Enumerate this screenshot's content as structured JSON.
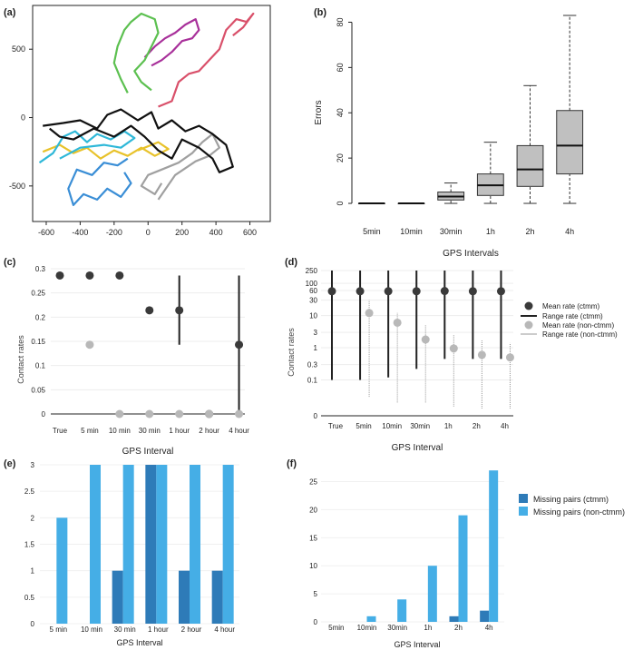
{
  "colors": {
    "black": "#111111",
    "gray": "#a0a0a0",
    "red": "#d9506a",
    "magenta": "#a8309a",
    "green": "#5cc050",
    "cyan": "#2fb8d8",
    "yellow": "#e8c22a",
    "blue": "#3a8ed6",
    "box_fill": "#c0c0c0",
    "dot_dark": "#3a3a3a",
    "dot_light": "#b8b8b8",
    "bar_dark": "#2e7bb8",
    "bar_light": "#45aee6"
  },
  "chart_data": [
    {
      "panel": "(a)",
      "type": "scatter",
      "title": "",
      "xlabel": "",
      "ylabel": "",
      "xlim": [
        -680,
        720
      ],
      "ylim": [
        -760,
        820
      ],
      "xticks": [
        "-600",
        "-400",
        "-200",
        "0",
        "200",
        "400",
        "600"
      ],
      "xtick_values": [
        -600,
        -400,
        -200,
        0,
        200,
        400,
        600
      ],
      "yticks": [
        "500",
        "0",
        "-500"
      ],
      "ytick_values": [
        500,
        0,
        -500
      ],
      "series": [
        {
          "name": "blue",
          "color_key": "blue",
          "points": [
            [
              -120,
              -300
            ],
            [
              -180,
              -350
            ],
            [
              -260,
              -330
            ],
            [
              -330,
              -420
            ],
            [
              -420,
              -380
            ],
            [
              -470,
              -520
            ],
            [
              -440,
              -640
            ],
            [
              -380,
              -560
            ],
            [
              -300,
              -600
            ],
            [
              -240,
              -520
            ],
            [
              -160,
              -580
            ],
            [
              -100,
              -480
            ],
            [
              -140,
              -400
            ]
          ]
        },
        {
          "name": "yellow",
          "color_key": "yellow",
          "points": [
            [
              -620,
              -250
            ],
            [
              -520,
              -200
            ],
            [
              -440,
              -260
            ],
            [
              -360,
              -220
            ],
            [
              -280,
              -300
            ],
            [
              -200,
              -240
            ],
            [
              -120,
              -280
            ],
            [
              -40,
              -220
            ],
            [
              40,
              -280
            ],
            [
              120,
              -230
            ],
            [
              60,
              -180
            ],
            [
              -60,
              -240
            ]
          ]
        },
        {
          "name": "cyan",
          "color_key": "cyan",
          "points": [
            [
              -640,
              -330
            ],
            [
              -560,
              -260
            ],
            [
              -500,
              -140
            ],
            [
              -430,
              -100
            ],
            [
              -360,
              -180
            ],
            [
              -300,
              -120
            ],
            [
              -220,
              -160
            ],
            [
              -140,
              -100
            ],
            [
              -80,
              -150
            ],
            [
              -160,
              -220
            ],
            [
              -260,
              -200
            ],
            [
              -400,
              -220
            ],
            [
              -520,
              -300
            ]
          ]
        },
        {
          "name": "gray",
          "color_key": "gray",
          "points": [
            [
              80,
              -480
            ],
            [
              40,
              -560
            ],
            [
              -40,
              -500
            ],
            [
              0,
              -420
            ],
            [
              80,
              -380
            ],
            [
              180,
              -330
            ],
            [
              260,
              -260
            ],
            [
              320,
              -180
            ],
            [
              380,
              -120
            ],
            [
              420,
              -220
            ],
            [
              360,
              -280
            ],
            [
              280,
              -320
            ],
            [
              160,
              -420
            ],
            [
              60,
              -600
            ]
          ]
        },
        {
          "name": "black",
          "color_key": "black",
          "points": [
            [
              -620,
              -60
            ],
            [
              -500,
              -40
            ],
            [
              -400,
              -20
            ],
            [
              -300,
              -80
            ],
            [
              -240,
              20
            ],
            [
              -160,
              60
            ],
            [
              -60,
              -20
            ],
            [
              20,
              40
            ],
            [
              60,
              -80
            ],
            [
              140,
              -20
            ],
            [
              220,
              -100
            ],
            [
              300,
              -60
            ],
            [
              380,
              -120
            ],
            [
              460,
              -200
            ],
            [
              500,
              -360
            ],
            [
              420,
              -400
            ],
            [
              380,
              -300
            ],
            [
              300,
              -220
            ],
            [
              200,
              -160
            ],
            [
              140,
              -300
            ],
            [
              60,
              -240
            ],
            [
              -20,
              -140
            ],
            [
              -100,
              -60
            ],
            [
              -200,
              -140
            ],
            [
              -320,
              -80
            ],
            [
              -440,
              -160
            ],
            [
              -520,
              -140
            ],
            [
              -580,
              -80
            ]
          ]
        },
        {
          "name": "red",
          "color_key": "red",
          "points": [
            [
              60,
              80
            ],
            [
              140,
              120
            ],
            [
              180,
              260
            ],
            [
              240,
              320
            ],
            [
              300,
              340
            ],
            [
              360,
              420
            ],
            [
              420,
              500
            ],
            [
              460,
              640
            ],
            [
              520,
              720
            ],
            [
              580,
              700
            ],
            [
              620,
              760
            ],
            [
              560,
              660
            ],
            [
              500,
              600
            ]
          ]
        },
        {
          "name": "magenta",
          "color_key": "magenta",
          "points": [
            [
              -20,
              440
            ],
            [
              40,
              520
            ],
            [
              100,
              580
            ],
            [
              160,
              620
            ],
            [
              220,
              680
            ],
            [
              280,
              720
            ],
            [
              300,
              640
            ],
            [
              260,
              580
            ],
            [
              200,
              560
            ],
            [
              140,
              480
            ],
            [
              80,
              420
            ],
            [
              20,
              380
            ]
          ]
        },
        {
          "name": "green",
          "color_key": "green",
          "points": [
            [
              -120,
              180
            ],
            [
              -160,
              280
            ],
            [
              -200,
              400
            ],
            [
              -180,
              520
            ],
            [
              -140,
              640
            ],
            [
              -100,
              700
            ],
            [
              -40,
              760
            ],
            [
              40,
              720
            ],
            [
              60,
              620
            ],
            [
              20,
              520
            ],
            [
              -20,
              420
            ],
            [
              -80,
              340
            ],
            [
              -40,
              260
            ],
            [
              20,
              200
            ]
          ]
        }
      ]
    },
    {
      "panel": "(b)",
      "type": "box",
      "xlabel": "GPS Intervals",
      "ylabel": "Errors",
      "ylim": [
        -4,
        85
      ],
      "yticks": [
        "0",
        "20",
        "40",
        "60",
        "80"
      ],
      "ytick_values": [
        0,
        20,
        40,
        60,
        80
      ],
      "categories": [
        "5min",
        "10min",
        "30min",
        "1h",
        "2h",
        "4h"
      ],
      "boxes": [
        {
          "min": 0,
          "q1": 0,
          "median": 0,
          "q3": 0,
          "max": 0
        },
        {
          "min": 0,
          "q1": 0,
          "median": 0,
          "q3": 0,
          "max": 0
        },
        {
          "min": 0,
          "q1": 1.5,
          "median": 3,
          "q3": 5,
          "max": 9
        },
        {
          "min": 0,
          "q1": 3.5,
          "median": 8,
          "q3": 13,
          "max": 27
        },
        {
          "min": 0,
          "q1": 7.5,
          "median": 15,
          "q3": 25.5,
          "max": 52
        },
        {
          "min": 0,
          "q1": 13,
          "median": 25.5,
          "q3": 41,
          "max": 83
        }
      ]
    },
    {
      "panel": "(c)",
      "type": "dot-range",
      "xlabel": "GPS Interval",
      "ylabel": "Contact rates",
      "ylim": [
        0,
        0.3
      ],
      "yticks": [
        "0",
        "0.05",
        "0.1",
        "0.15",
        "0.2",
        "0.25",
        "0.3"
      ],
      "ytick_values": [
        0,
        0.05,
        0.1,
        0.15,
        0.2,
        0.25,
        0.3
      ],
      "categories": [
        "True",
        "5 min",
        "10 min",
        "30 min",
        "1 hour",
        "2 hour",
        "4 hour"
      ],
      "series": [
        {
          "name": "ctmm",
          "color_key": "dot_dark",
          "values": [
            0.286,
            0.286,
            0.286,
            0.214,
            0.214,
            0,
            0.143
          ],
          "ranges": [
            null,
            null,
            null,
            null,
            [
              0.143,
              0.286
            ],
            null,
            [
              0,
              0.286
            ]
          ]
        },
        {
          "name": "non-ctmm",
          "color_key": "dot_light",
          "values": [
            null,
            0.143,
            0,
            0,
            0,
            0,
            0
          ],
          "ranges": []
        }
      ]
    },
    {
      "panel": "(d)",
      "type": "dot-range",
      "yscale": "log",
      "xlabel": "GPS Interval",
      "ylabel": "Contact rates",
      "yticks": [
        "250",
        "100",
        "60",
        "30",
        "10",
        "3",
        "1",
        "0.3",
        "0.1",
        "0"
      ],
      "ytick_values": [
        250,
        100,
        60,
        30,
        10,
        3,
        1,
        0.3,
        0.1,
        0
      ],
      "categories": [
        "True",
        "5min",
        "10min",
        "30min",
        "1h",
        "2h",
        "4h"
      ],
      "series": [
        {
          "name": "Mean rate (ctmm)",
          "color_key": "dot_dark",
          "values": [
            57,
            57,
            57,
            57,
            58,
            57,
            57
          ],
          "ranges": [
            [
              0.1,
              250
            ],
            [
              0.1,
              250
            ],
            [
              0.12,
              250
            ],
            [
              0.22,
              250
            ],
            [
              0.45,
              250
            ],
            [
              0.45,
              250
            ],
            [
              0.45,
              250
            ]
          ]
        },
        {
          "name": "Mean rate (non-ctmm)",
          "color_key": "dot_light",
          "values": [
            null,
            12,
            6,
            1.8,
            0.95,
            0.6,
            0.5
          ],
          "ranges": [
            null,
            [
              0.03,
              30
            ],
            [
              0.02,
              12
            ],
            [
              0.02,
              5
            ],
            [
              0.015,
              2.5
            ],
            [
              0.013,
              1.7
            ],
            [
              0.013,
              1.4
            ]
          ]
        }
      ],
      "legend": [
        "Mean rate (ctmm)",
        "Range rate (ctmm)",
        "Mean rate (non-ctmm)",
        "Range rate (non-ctmm)"
      ]
    },
    {
      "panel": "(e)",
      "type": "bar",
      "xlabel": "GPS Interval",
      "ylabel": "",
      "ylim": [
        0,
        3
      ],
      "yticks": [
        "0",
        "0.5",
        "1",
        "1.5",
        "2",
        "2.5",
        "3"
      ],
      "ytick_values": [
        0,
        0.5,
        1,
        1.5,
        2,
        2.5,
        3
      ],
      "categories": [
        "5 min",
        "10 min",
        "30 min",
        "1 hour",
        "2 hour",
        "4 hour"
      ],
      "series": [
        {
          "name": "Missing pairs (ctmm)",
          "color_key": "bar_dark",
          "values": [
            0,
            0,
            1,
            3,
            1,
            1
          ]
        },
        {
          "name": "Missing pairs (non-ctmm)",
          "color_key": "bar_light",
          "values": [
            2,
            3,
            3,
            3,
            3,
            3
          ]
        }
      ]
    },
    {
      "panel": "(f)",
      "type": "bar",
      "xlabel": "GPS Interval",
      "ylabel": "",
      "ylim": [
        0,
        28
      ],
      "yticks": [
        "0",
        "5",
        "10",
        "15",
        "20",
        "25"
      ],
      "ytick_values": [
        0,
        5,
        10,
        15,
        20,
        25
      ],
      "categories": [
        "5min",
        "10min",
        "30min",
        "1h",
        "2h",
        "4h"
      ],
      "series": [
        {
          "name": "Missing pairs (ctmm)",
          "color_key": "bar_dark",
          "values": [
            0,
            0,
            0,
            0,
            1,
            2
          ]
        },
        {
          "name": "Missing pairs (non-ctmm)",
          "color_key": "bar_light",
          "values": [
            0,
            1,
            4,
            10,
            19,
            27
          ]
        }
      ],
      "legend": [
        "Missing pairs (ctmm)",
        "Missing pairs (non-ctmm)"
      ]
    }
  ]
}
